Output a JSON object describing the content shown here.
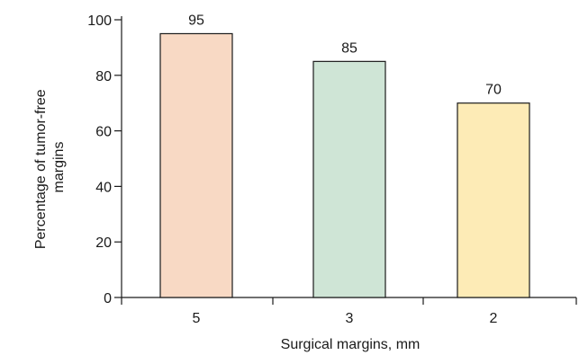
{
  "chart_data": {
    "type": "bar",
    "categories": [
      "5",
      "3",
      "2"
    ],
    "values": [
      95,
      85,
      70
    ],
    "data_labels": [
      "95",
      "85",
      "70"
    ],
    "bar_colors": [
      "#f8d9c4",
      "#cfe5d6",
      "#fdebb6"
    ],
    "xlabel": "Surgical margins, mm",
    "ylabel_lines": [
      "Percentage of tumor-free",
      "margins"
    ],
    "ylim": [
      0,
      100
    ],
    "yticks": [
      0,
      20,
      40,
      60,
      80,
      100
    ],
    "grid": false,
    "legend": "none"
  }
}
